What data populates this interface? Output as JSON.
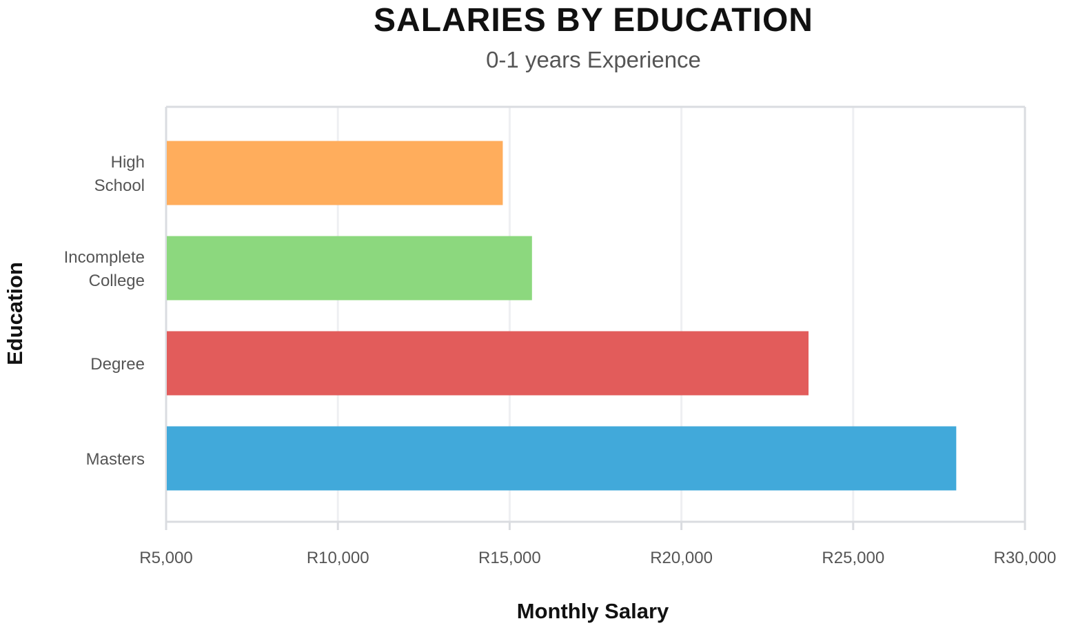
{
  "chart_data": {
    "type": "bar",
    "orientation": "horizontal",
    "title": "SALARIES BY EDUCATION",
    "subtitle": "0-1 years Experience",
    "xlabel": "Monthly Salary",
    "ylabel": "Education",
    "categories": [
      [
        "High",
        "School"
      ],
      [
        "Incomplete",
        "College"
      ],
      [
        "Degree"
      ],
      [
        "Masters"
      ]
    ],
    "values": [
      14800,
      15650,
      23700,
      28000
    ],
    "colors": [
      "#FFAD5C",
      "#8CD87E",
      "#E25C5B",
      "#41A9DA"
    ],
    "xlim": [
      5000,
      30000
    ],
    "xticks": [
      5000,
      10000,
      15000,
      20000,
      25000,
      30000
    ],
    "xtick_labels": [
      "R5,000",
      "R10,000",
      "R15,000",
      "R20,000",
      "R25,000",
      "R30,000"
    ],
    "grid": true,
    "legend": "none"
  }
}
